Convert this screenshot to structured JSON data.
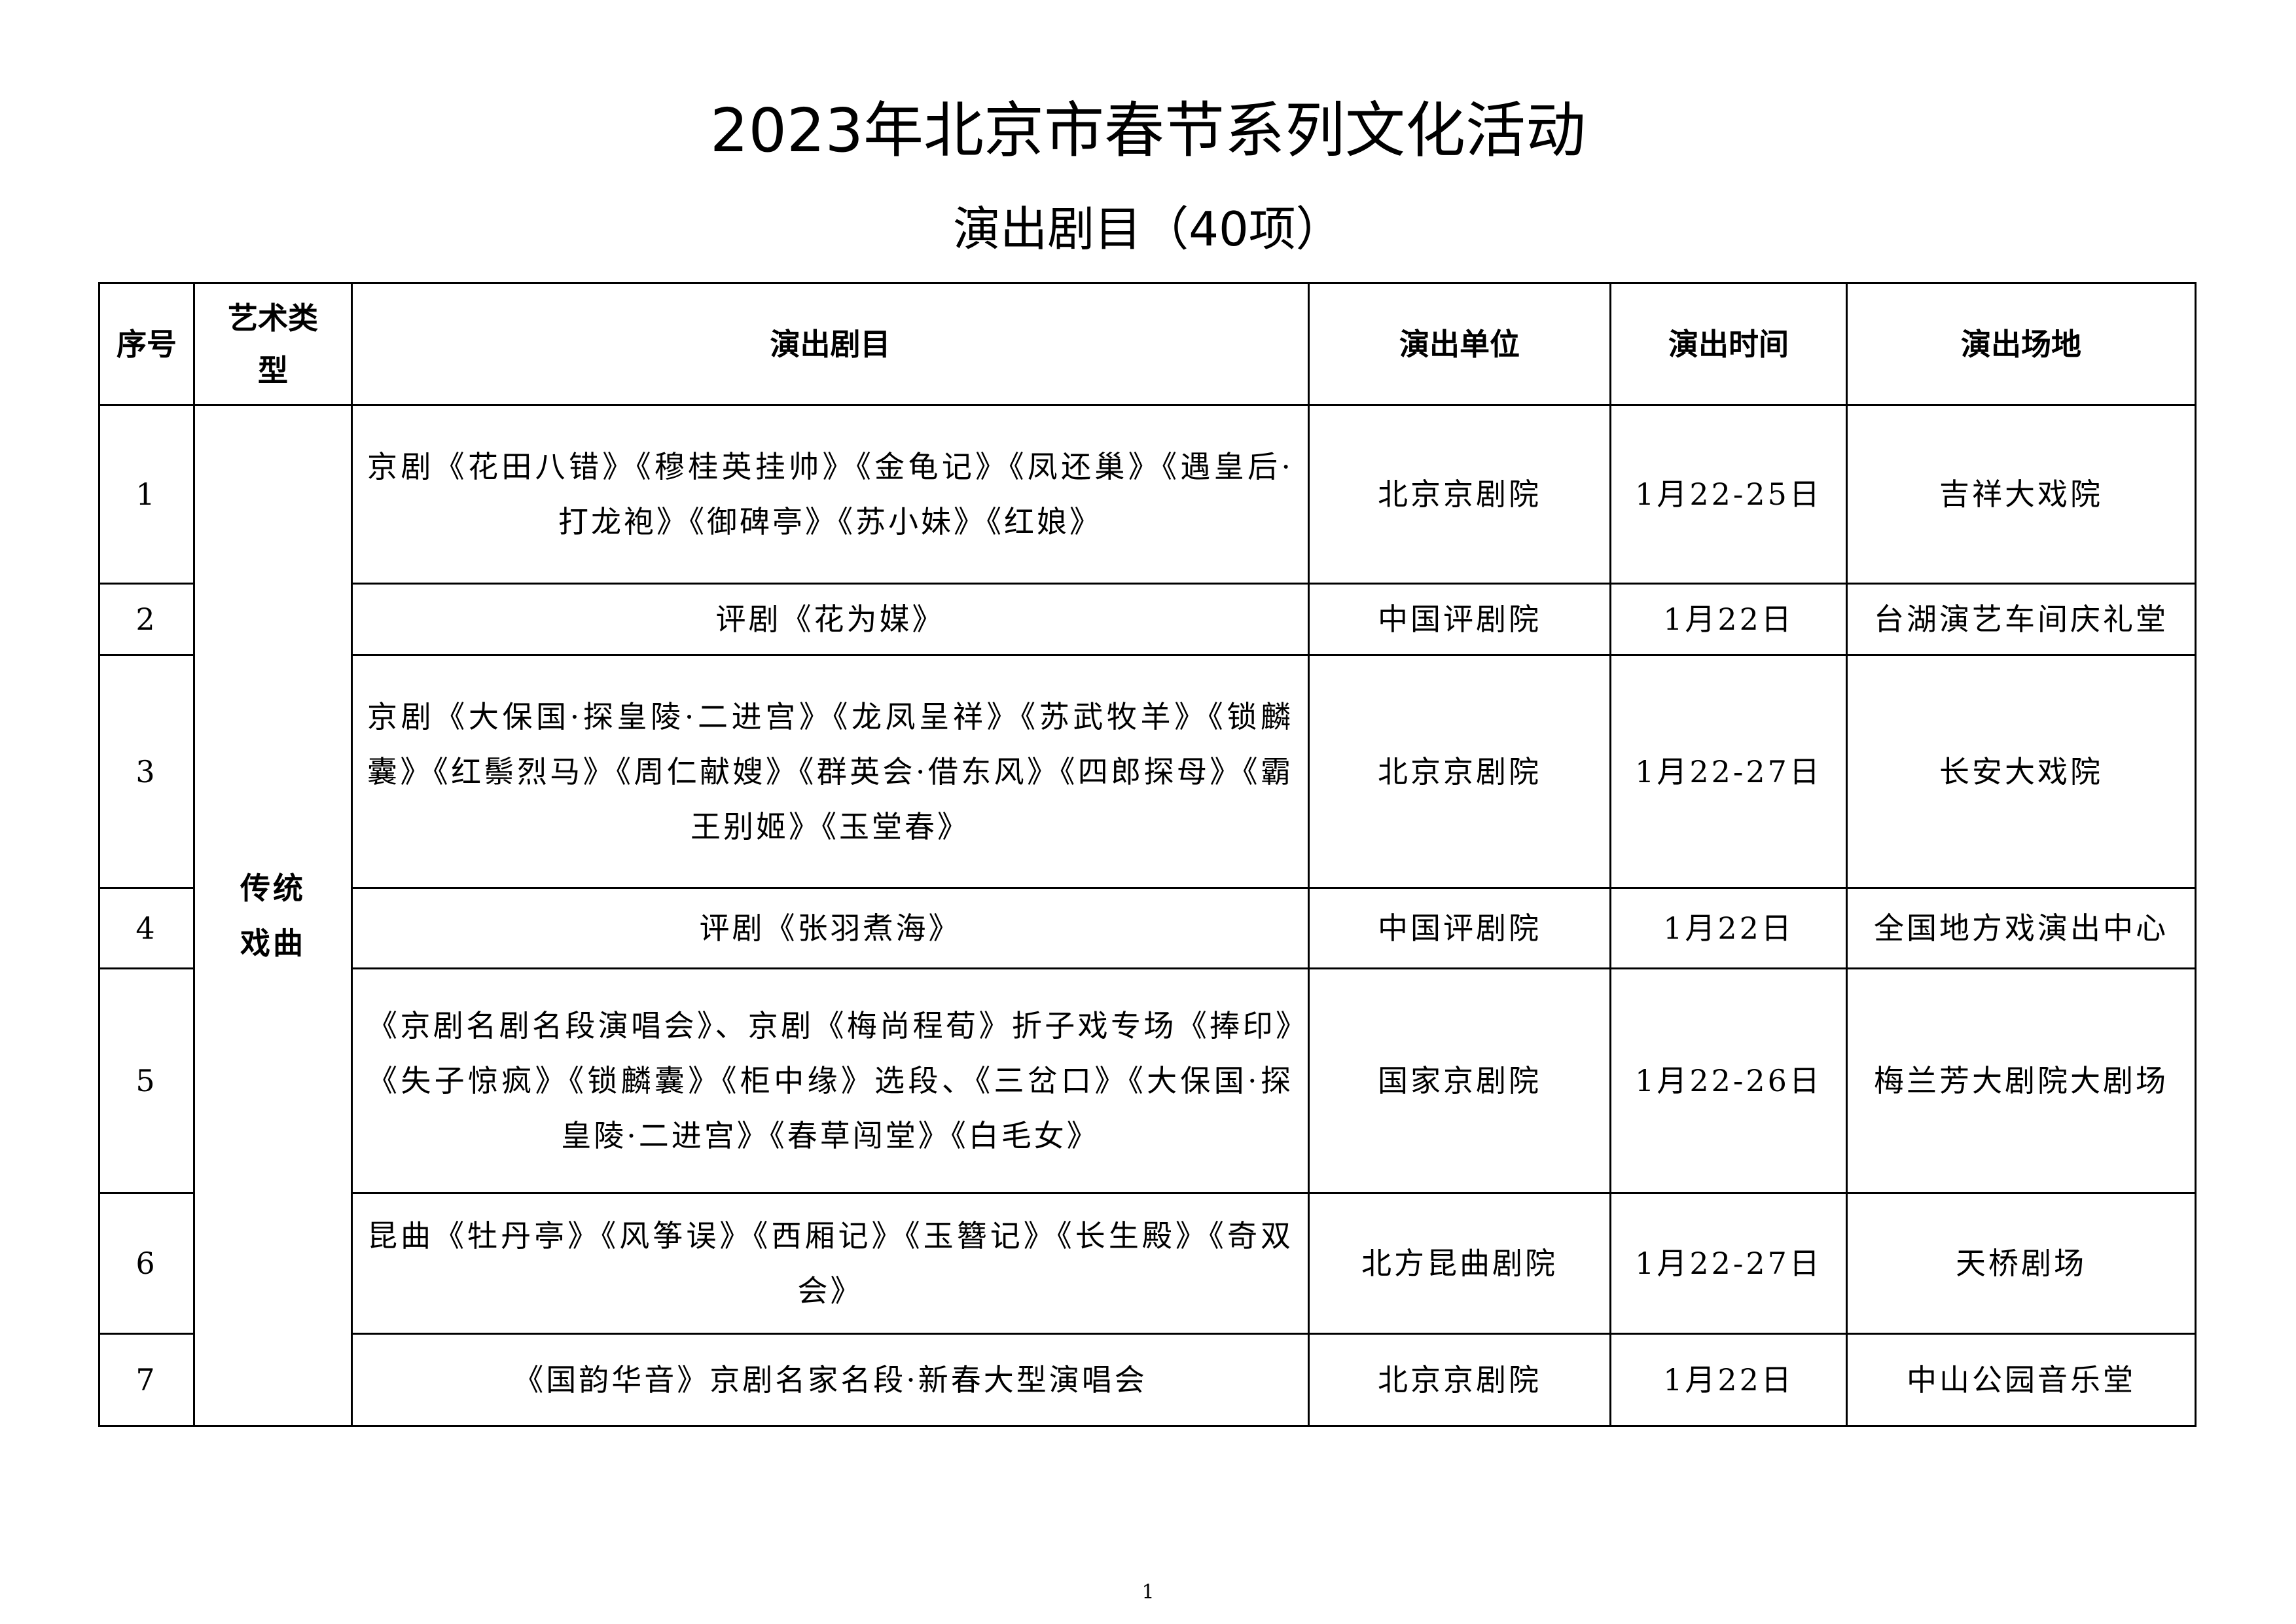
{
  "title": "2023年北京市春节系列文化活动",
  "subtitle": "演出剧目（40项）",
  "table": {
    "headers": [
      "序号",
      "艺术类型",
      "演出剧目",
      "演出单位",
      "演出时间",
      "演出场地"
    ],
    "category": "传统戏曲",
    "rows": [
      {
        "no": "1",
        "program": "京剧《花田八错》《穆桂英挂帅》《金龟记》《凤还巢》《遇皇后·打龙袍》《御碑亭》《苏小妹》《红娘》",
        "unit": "北京京剧院",
        "time": "1月22-25日",
        "venue": "吉祥大戏院"
      },
      {
        "no": "2",
        "program": "评剧《花为媒》",
        "unit": "中国评剧院",
        "time": "1月22日",
        "venue": "台湖演艺车间庆礼堂"
      },
      {
        "no": "3",
        "program": "京剧《大保国·探皇陵·二进宫》《龙凤呈祥》《苏武牧羊》《锁麟囊》《红鬃烈马》《周仁献嫂》《群英会·借东风》《四郎探母》《霸王别姬》《玉堂春》",
        "unit": "北京京剧院",
        "time": "1月22-27日",
        "venue": "长安大戏院"
      },
      {
        "no": "4",
        "program": "评剧《张羽煮海》",
        "unit": "中国评剧院",
        "time": "1月22日",
        "venue": "全国地方戏演出中心"
      },
      {
        "no": "5",
        "program": "《京剧名剧名段演唱会》、京剧《梅尚程荀》折子戏专场《捧印》《失子惊疯》《锁麟囊》《柜中缘》选段、《三岔口》《大保国·探皇陵·二进宫》《春草闯堂》《白毛女》",
        "unit": "国家京剧院",
        "time": "1月22-26日",
        "venue": "梅兰芳大剧院大剧场"
      },
      {
        "no": "6",
        "program": "昆曲《牡丹亭》《风筝误》《西厢记》《玉簪记》《长生殿》《奇双会》",
        "unit": "北方昆曲剧院",
        "time": "1月22-27日",
        "venue": "天桥剧场"
      },
      {
        "no": "7",
        "program": "《国韵华音》京剧名家名段·新春大型演唱会",
        "unit": "北京京剧院",
        "time": "1月22日",
        "venue": "中山公园音乐堂"
      }
    ]
  },
  "page_number": "1"
}
